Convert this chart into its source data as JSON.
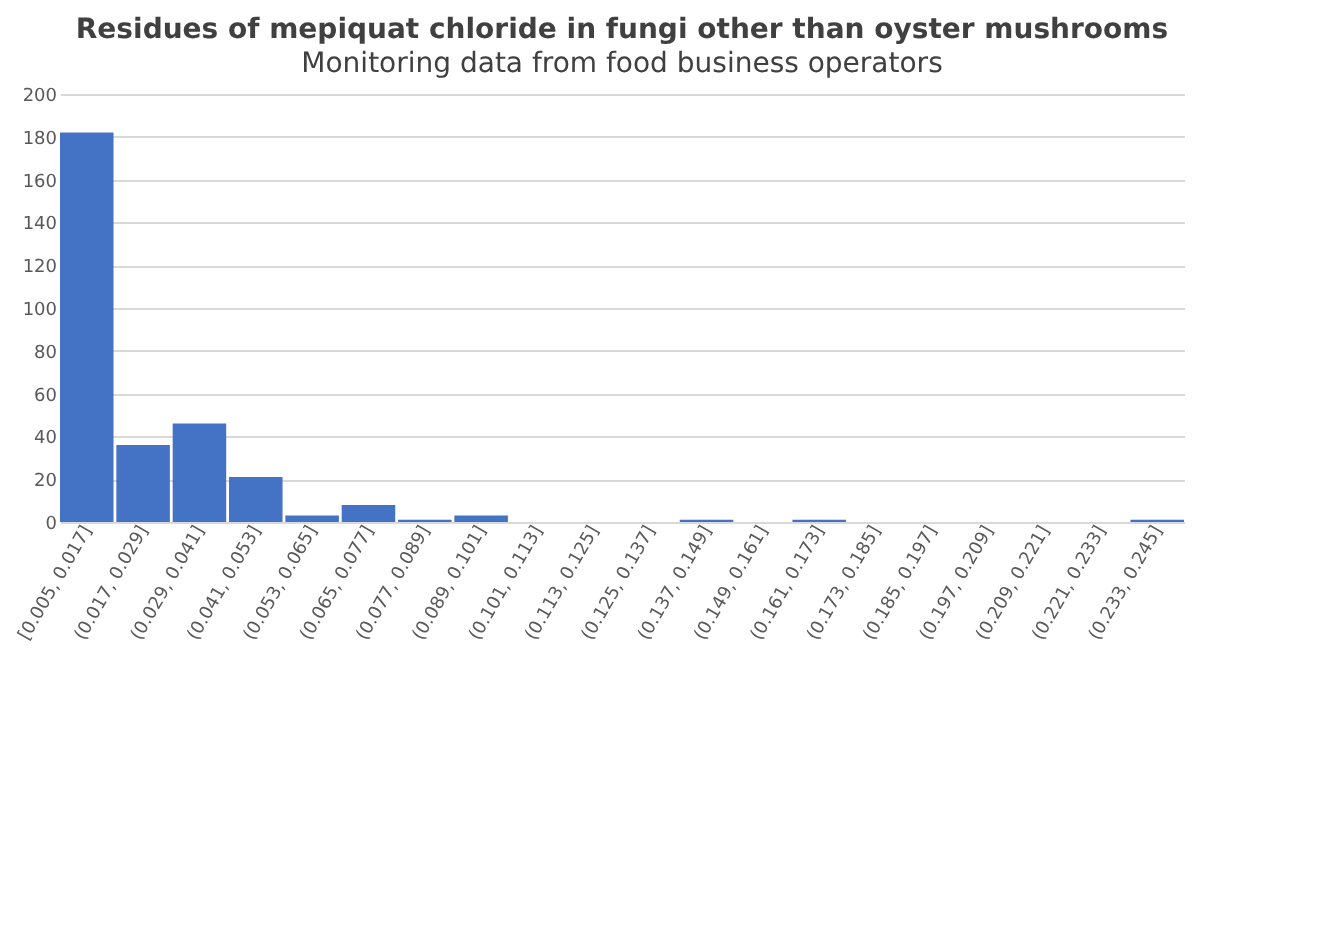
{
  "chart_data": {
    "type": "bar",
    "title": "Residues of mepiquat chloride in fungi other than oyster mushrooms",
    "subtitle": "Monitoring data from food business operators",
    "categories": [
      "[0.005, 0.017]",
      "(0.017, 0.029]",
      "(0.029, 0.041]",
      "(0.041, 0.053]",
      "(0.053, 0.065]",
      "(0.065, 0.077]",
      "(0.077, 0.089]",
      "(0.089, 0.101]",
      "(0.101, 0.113]",
      "(0.113, 0.125]",
      "(0.125, 0.137]",
      "(0.137, 0.149]",
      "(0.149, 0.161]",
      "(0.161, 0.173]",
      "(0.173, 0.185]",
      "(0.185, 0.197]",
      "(0.197, 0.209]",
      "(0.209, 0.221]",
      "(0.221, 0.233]",
      "(0.233, 0.245]"
    ],
    "values": [
      182,
      36,
      46,
      21,
      3,
      8,
      1,
      3,
      0,
      0,
      0,
      1,
      0,
      1,
      0,
      0,
      0,
      0,
      0,
      1
    ],
    "color": "#4472c4",
    "ylim": [
      0,
      200
    ],
    "yticks": [
      0,
      20,
      40,
      60,
      80,
      100,
      120,
      140,
      160,
      180,
      200
    ],
    "grid": "y"
  }
}
